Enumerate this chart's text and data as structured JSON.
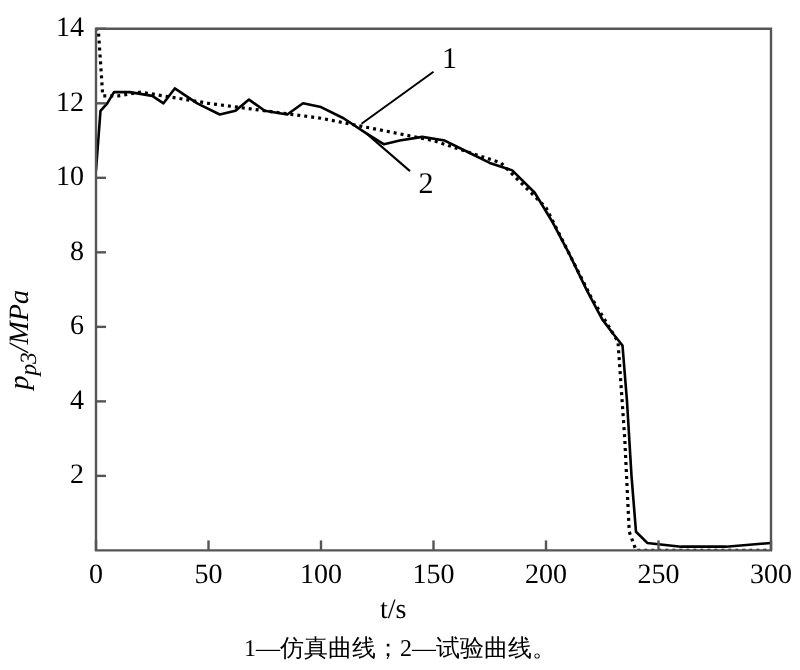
{
  "chart_data": {
    "type": "line",
    "xlabel": "t/s",
    "ylabel": "p$_{p3}$/MPa",
    "xlim": [
      0,
      300
    ],
    "xticks": [
      0,
      50,
      100,
      150,
      200,
      250,
      300
    ],
    "ylim": [
      0,
      14
    ],
    "yticks": [
      2,
      4,
      6,
      8,
      10,
      12,
      14
    ],
    "grid": false,
    "legend": false,
    "marker": "none",
    "series": [
      {
        "color": "#000000",
        "line_style": "dotted",
        "x": [
          0,
          1,
          3,
          10,
          20,
          50,
          100,
          150,
          180,
          200,
          220,
          232,
          235,
          237,
          240,
          260,
          300
        ],
        "values": [
          14,
          14,
          12.2,
          12.2,
          12.3,
          12,
          11.6,
          11,
          10.4,
          9.2,
          6.8,
          5.6,
          3,
          0.5,
          0,
          0,
          0
        ]
      },
      {
        "color": "#000000",
        "line_style": "solid",
        "x": [
          0,
          2,
          5,
          8,
          15,
          25,
          30,
          35,
          45,
          55,
          62,
          68,
          75,
          85,
          92,
          100,
          110,
          120,
          128,
          135,
          145,
          155,
          165,
          175,
          185,
          195,
          203,
          210,
          218,
          225,
          230,
          234,
          236,
          238,
          240,
          245,
          260,
          280,
          300
        ],
        "values": [
          10.2,
          11.8,
          12,
          12.3,
          12.3,
          12.2,
          12,
          12.4,
          12,
          11.7,
          11.8,
          12.1,
          11.8,
          11.7,
          12,
          11.9,
          11.6,
          11.2,
          10.9,
          11,
          11.1,
          11,
          10.7,
          10.4,
          10.2,
          9.6,
          8.8,
          8,
          7,
          6.2,
          5.8,
          5.5,
          4,
          2,
          0.5,
          0.2,
          0.1,
          0.1,
          0.2
        ]
      }
    ],
    "annotations": [
      {
        "text": "1",
        "x": 118,
        "y": 11.45
      },
      {
        "text": "2",
        "x": 120,
        "y": 11.2
      },
      "1—仿真曲线；2—试验曲线。"
    ]
  }
}
